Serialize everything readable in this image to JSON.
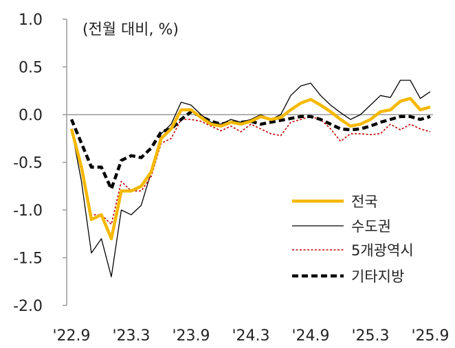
{
  "chart_data": {
    "type": "line",
    "unit_label": "(전월 대비, %)",
    "ylim": [
      -2.0,
      1.0
    ],
    "yticks": [
      1.0,
      0.5,
      0.0,
      -0.5,
      -1.0,
      -1.5,
      -2.0
    ],
    "ytick_labels": [
      "1.0",
      "0.5",
      "0.0",
      "-0.5",
      "-1.0",
      "-1.5",
      "-2.0"
    ],
    "xtick_labels": [
      "'22.9",
      "'23.3",
      "'23.9",
      "'24.3",
      "'24.9",
      "'25.3",
      "'25.9"
    ],
    "x": [
      "'22.9",
      "'22.10",
      "'22.11",
      "'22.12",
      "'23.1",
      "'23.2",
      "'23.3",
      "'23.4",
      "'23.5",
      "'23.6",
      "'23.7",
      "'23.8",
      "'23.9",
      "'23.10",
      "'23.11",
      "'23.12",
      "'24.1",
      "'24.2",
      "'24.3",
      "'24.4",
      "'24.5",
      "'24.6",
      "'24.7",
      "'24.8",
      "'24.9",
      "'24.10",
      "'24.11",
      "'24.12",
      "'25.1",
      "'25.2",
      "'25.3",
      "'25.4",
      "'25.5",
      "'25.6",
      "'25.7",
      "'25.8",
      "'25.9"
    ],
    "grid": false,
    "legend_position": "bottom-right",
    "series": [
      {
        "name": "전국",
        "color": "#F5B800",
        "style": "solid-thick",
        "values": [
          -0.15,
          -0.55,
          -1.1,
          -1.05,
          -1.3,
          -0.8,
          -0.8,
          -0.75,
          -0.6,
          -0.25,
          -0.15,
          0.05,
          0.05,
          -0.03,
          -0.1,
          -0.12,
          -0.08,
          -0.1,
          -0.07,
          -0.02,
          -0.05,
          -0.03,
          0.05,
          0.12,
          0.16,
          0.1,
          0.03,
          -0.05,
          -0.12,
          -0.1,
          -0.05,
          0.03,
          0.05,
          0.14,
          0.17,
          0.05,
          0.08
        ]
      },
      {
        "name": "수도권",
        "color": "#000000",
        "style": "solid-thin",
        "values": [
          -0.15,
          -0.7,
          -1.45,
          -1.3,
          -1.7,
          -1.0,
          -1.05,
          -0.95,
          -0.6,
          -0.2,
          -0.1,
          0.13,
          0.1,
          0.0,
          -0.08,
          -0.1,
          -0.05,
          -0.08,
          -0.05,
          0.0,
          -0.05,
          0.0,
          0.2,
          0.3,
          0.33,
          0.2,
          0.1,
          0.02,
          -0.05,
          0.0,
          0.1,
          0.2,
          0.18,
          0.36,
          0.36,
          0.17,
          0.24
        ]
      },
      {
        "name": "5개광역시",
        "color": "#C00000",
        "style": "dotted",
        "values": [
          -0.15,
          -0.6,
          -1.05,
          -1.05,
          -1.15,
          -0.7,
          -0.8,
          -0.8,
          -0.65,
          -0.3,
          -0.25,
          -0.05,
          -0.05,
          -0.07,
          -0.12,
          -0.17,
          -0.12,
          -0.18,
          -0.1,
          -0.15,
          -0.2,
          -0.22,
          -0.08,
          -0.05,
          -0.02,
          -0.05,
          -0.15,
          -0.28,
          -0.2,
          -0.2,
          -0.21,
          -0.2,
          -0.1,
          -0.16,
          -0.1,
          -0.15,
          -0.18
        ]
      },
      {
        "name": "기타지방",
        "color": "#000000",
        "style": "dashed-thick",
        "values": [
          -0.05,
          -0.3,
          -0.55,
          -0.55,
          -0.78,
          -0.48,
          -0.43,
          -0.45,
          -0.35,
          -0.18,
          -0.15,
          -0.05,
          0.03,
          -0.02,
          -0.07,
          -0.1,
          -0.08,
          -0.08,
          -0.07,
          -0.1,
          -0.08,
          -0.06,
          -0.04,
          -0.02,
          -0.02,
          -0.05,
          -0.1,
          -0.15,
          -0.16,
          -0.15,
          -0.12,
          -0.08,
          -0.05,
          -0.02,
          -0.02,
          -0.05,
          -0.02
        ]
      }
    ]
  }
}
